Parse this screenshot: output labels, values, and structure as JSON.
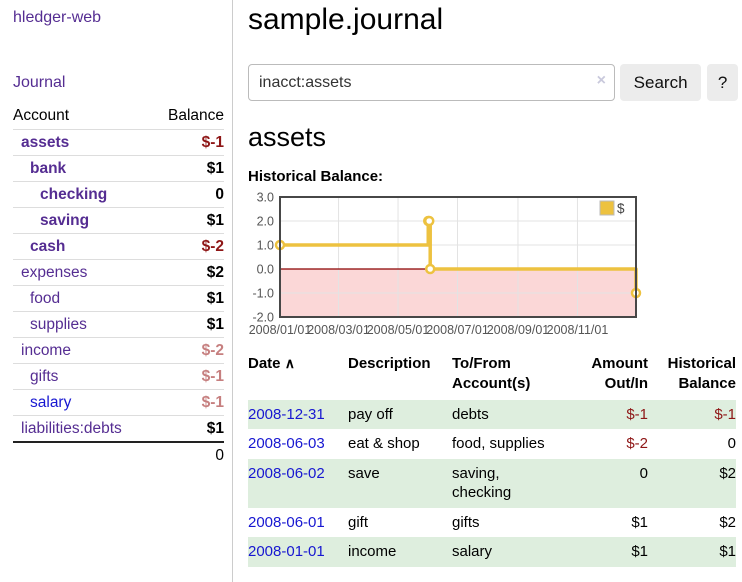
{
  "app": {
    "brand": "hledger-web",
    "nav": {
      "journal": "Journal"
    }
  },
  "sidebar": {
    "accounts_header": {
      "account": "Account",
      "balance": "Balance"
    },
    "accounts": [
      {
        "name": "assets",
        "balance": "$-1"
      },
      {
        "name": "bank",
        "balance": "$1"
      },
      {
        "name": "checking",
        "balance": "0"
      },
      {
        "name": "saving",
        "balance": "$1"
      },
      {
        "name": "cash",
        "balance": "$-2"
      },
      {
        "name": "expenses",
        "balance": "$2"
      },
      {
        "name": "food",
        "balance": "$1"
      },
      {
        "name": "supplies",
        "balance": "$1"
      },
      {
        "name": "income",
        "balance": "$-2"
      },
      {
        "name": "gifts",
        "balance": "$-1"
      },
      {
        "name": "salary",
        "balance": "$-1"
      },
      {
        "name": "liabilities:debts",
        "balance": "$1"
      }
    ],
    "total": "0"
  },
  "header": {
    "title": "sample.journal"
  },
  "search": {
    "value": "inacct:assets",
    "clear_icon": "×",
    "button": "Search",
    "help_button": "?"
  },
  "account_page": {
    "title": "assets"
  },
  "chart_data": {
    "type": "line",
    "title": "Historical Balance:",
    "step": true,
    "series": [
      {
        "name": "$",
        "color": "#edc240",
        "points": [
          [
            "2008-01-01",
            1
          ],
          [
            "2008-06-01",
            2
          ],
          [
            "2008-06-02",
            2
          ],
          [
            "2008-06-03",
            0
          ],
          [
            "2008-12-31",
            -1
          ]
        ]
      }
    ],
    "ylim": [
      -2,
      3
    ],
    "xlim": [
      "2008-01-01",
      "2008-12-31"
    ],
    "yticks": [
      "3.0",
      "2.0",
      "1.0",
      "0.0",
      "-1.0",
      "-2.0"
    ],
    "xticks": [
      "2008/01/01",
      "2008/03/01",
      "2008/05/01",
      "2008/07/01",
      "2008/09/01",
      "2008/11/01"
    ],
    "grid": true,
    "negative_region_fill": "#fbd7d7",
    "zero_line_color": "#8b0000",
    "legend": {
      "position": "top-right",
      "label": "$",
      "swatch_color": "#edc240"
    }
  },
  "register": {
    "columns": [
      "Date",
      "Description",
      "To/From Account(s)",
      "Amount Out/In",
      "Historical Balance"
    ],
    "sort_icon": "∧",
    "rows": [
      {
        "date": "2008-12-31",
        "description": "pay off",
        "accounts": "debts",
        "amount": "$-1",
        "balance": "$-1"
      },
      {
        "date": "2008-06-03",
        "description": "eat & shop",
        "accounts": "food, supplies",
        "amount": "$-2",
        "balance": "0"
      },
      {
        "date": "2008-06-02",
        "description": "save",
        "accounts": "saving, checking",
        "amount": "0",
        "balance": "$2"
      },
      {
        "date": "2008-06-01",
        "description": "gift",
        "accounts": "gifts",
        "amount": "$1",
        "balance": "$2"
      },
      {
        "date": "2008-01-01",
        "description": "income",
        "accounts": "salary",
        "amount": "$1",
        "balance": "$1"
      }
    ]
  },
  "colors": {
    "link_purple": "#552d92",
    "link_blue": "#1717d1",
    "negative_strong": "#8e1616",
    "negative_soft": "#c67f7f",
    "row_stripe_green": "#deeede",
    "series_gold": "#edc240",
    "negative_region_pink": "#fbd7d7",
    "zero_line_dark_red": "#8b0000"
  }
}
